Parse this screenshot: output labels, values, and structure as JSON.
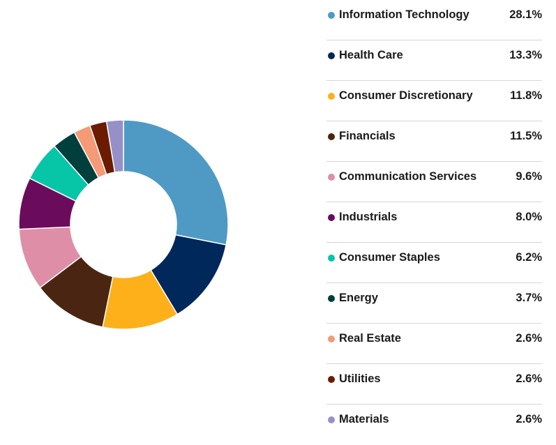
{
  "chart_data": {
    "type": "pie",
    "donut": true,
    "unit": "%",
    "categories": [
      "Information Technology",
      "Health Care",
      "Consumer Discretionary",
      "Financials",
      "Communication Services",
      "Industrials",
      "Consumer Staples",
      "Energy",
      "Real Estate",
      "Utilities",
      "Materials"
    ],
    "values": [
      28.1,
      13.3,
      11.8,
      11.5,
      9.6,
      8.0,
      6.2,
      3.7,
      2.6,
      2.6,
      2.6
    ],
    "value_labels": [
      "28.1%",
      "13.3%",
      "11.8%",
      "11.5%",
      "9.6%",
      "8.0%",
      "6.2%",
      "3.7%",
      "2.6%",
      "2.6%",
      "2.6%"
    ],
    "colors": [
      "#4e9ac4",
      "#00285a",
      "#fdb019",
      "#4a2612",
      "#df8ea8",
      "#6b0b5b",
      "#07c5a7",
      "#003f3c",
      "#f49a77",
      "#6b1b00",
      "#9591c8"
    ],
    "legend_position": "right"
  }
}
